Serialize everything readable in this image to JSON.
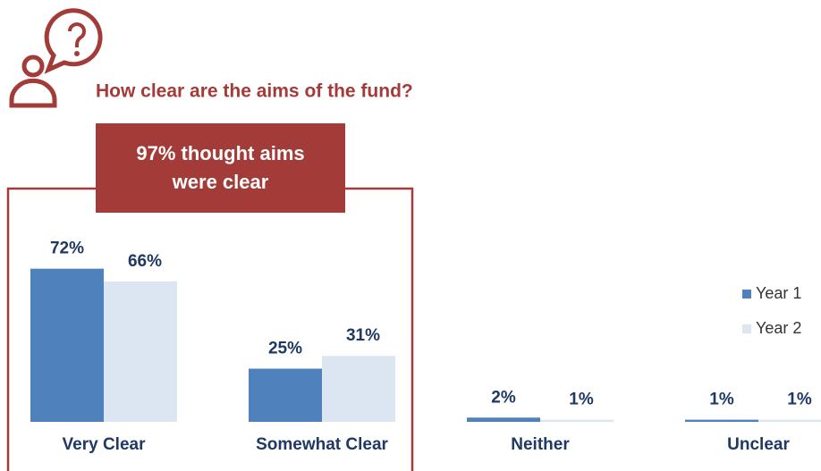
{
  "chart_data": {
    "type": "bar",
    "title": "How clear are the aims of the fund?",
    "annotation": "97% thought aims were clear",
    "categories": [
      "Very Clear",
      "Somewhat Clear",
      "Neither",
      "Unclear"
    ],
    "series": [
      {
        "name": "Year 1",
        "color": "#4f81bd",
        "values": [
          72,
          25,
          2,
          1
        ],
        "value_labels": [
          "72%",
          "25%",
          "2%",
          "1%"
        ]
      },
      {
        "name": "Year 2",
        "color": "#dce6f2",
        "values": [
          66,
          31,
          1,
          1
        ],
        "value_labels": [
          "66%",
          "31%",
          "1%",
          "1%"
        ]
      }
    ],
    "ylim": [
      0,
      100
    ],
    "legend": "right"
  }
}
